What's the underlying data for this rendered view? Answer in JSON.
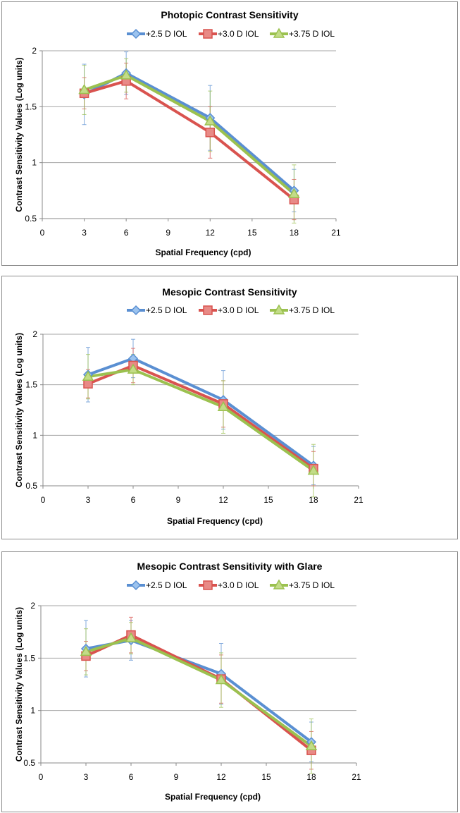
{
  "colors": {
    "+2.5 D IOL": "#5a8fd2",
    "+3.0 D IOL": "#d9534f",
    "+3.75 D IOL": "#9bc14f"
  },
  "chart_data": [
    {
      "type": "line",
      "title": "Photopic Contrast Sensitivity",
      "xlabel": "Spatial Frequency (cpd)",
      "ylabel": "Contrast Sensitivity Values (Log units)",
      "xlim": [
        0,
        21
      ],
      "ylim": [
        0.5,
        2
      ],
      "xticks": [
        "0",
        "3",
        "6",
        "9",
        "12",
        "15",
        "18",
        "21"
      ],
      "yticks": [
        "0.5",
        "1",
        "1.5",
        "2"
      ],
      "grid": "horizontal",
      "legend": "top-center",
      "x": [
        3,
        6,
        12,
        18
      ],
      "series": [
        {
          "name": "+2.5 D IOL",
          "marker": "diamond",
          "values": [
            1.61,
            1.8,
            1.4,
            0.75
          ],
          "error": [
            0.27,
            0.19,
            0.29,
            0.19
          ]
        },
        {
          "name": "+3.0 D IOL",
          "marker": "square",
          "values": [
            1.62,
            1.73,
            1.27,
            0.67
          ],
          "error": [
            0.14,
            0.16,
            0.23,
            0.18
          ]
        },
        {
          "name": "+3.75 D IOL",
          "marker": "triangle",
          "values": [
            1.65,
            1.78,
            1.37,
            0.72
          ],
          "error": [
            0.22,
            0.15,
            0.27,
            0.26
          ]
        }
      ]
    },
    {
      "type": "line",
      "title": "Mesopic Contrast Sensitivity",
      "xlabel": "Spatial Frequency (cpd)",
      "ylabel": "Contrast Sensitivity Values (Log units)",
      "xlim": [
        0,
        21
      ],
      "ylim": [
        0.5,
        2
      ],
      "xticks": [
        "0",
        "3",
        "6",
        "9",
        "12",
        "15",
        "18",
        "21"
      ],
      "yticks": [
        "0.5",
        "1",
        "1.5",
        "2"
      ],
      "grid": "horizontal",
      "legend": "top-center",
      "x": [
        3,
        6,
        12,
        18
      ],
      "series": [
        {
          "name": "+2.5 D IOL",
          "marker": "diamond",
          "values": [
            1.6,
            1.76,
            1.35,
            0.7
          ],
          "error": [
            0.27,
            0.19,
            0.29,
            0.19
          ]
        },
        {
          "name": "+3.0 D IOL",
          "marker": "square",
          "values": [
            1.51,
            1.69,
            1.31,
            0.67
          ],
          "error": [
            0.14,
            0.17,
            0.23,
            0.17
          ]
        },
        {
          "name": "+3.75 D IOL",
          "marker": "triangle",
          "values": [
            1.58,
            1.65,
            1.28,
            0.65
          ],
          "error": [
            0.22,
            0.15,
            0.26,
            0.26
          ]
        }
      ]
    },
    {
      "type": "line",
      "title": "Mesopic Contrast Sensitivity with Glare",
      "xlabel": "Spatial Frequency (cpd)",
      "ylabel": "Contrast Sensitivity Values (Log units)",
      "xlim": [
        0,
        21
      ],
      "ylim": [
        0.5,
        2
      ],
      "xticks": [
        "0",
        "3",
        "6",
        "9",
        "12",
        "15",
        "18",
        "21"
      ],
      "yticks": [
        "0.5",
        "1",
        "1.5",
        "2"
      ],
      "grid": "horizontal",
      "legend": "top-center",
      "x": [
        3,
        6,
        12,
        18
      ],
      "series": [
        {
          "name": "+2.5 D IOL",
          "marker": "diamond",
          "values": [
            1.59,
            1.67,
            1.35,
            0.7
          ],
          "error": [
            0.27,
            0.19,
            0.29,
            0.19
          ]
        },
        {
          "name": "+3.0 D IOL",
          "marker": "square",
          "values": [
            1.52,
            1.72,
            1.3,
            0.62
          ],
          "error": [
            0.14,
            0.17,
            0.23,
            0.18
          ]
        },
        {
          "name": "+3.75 D IOL",
          "marker": "triangle",
          "values": [
            1.56,
            1.69,
            1.29,
            0.66
          ],
          "error": [
            0.22,
            0.15,
            0.26,
            0.26
          ]
        }
      ]
    }
  ]
}
